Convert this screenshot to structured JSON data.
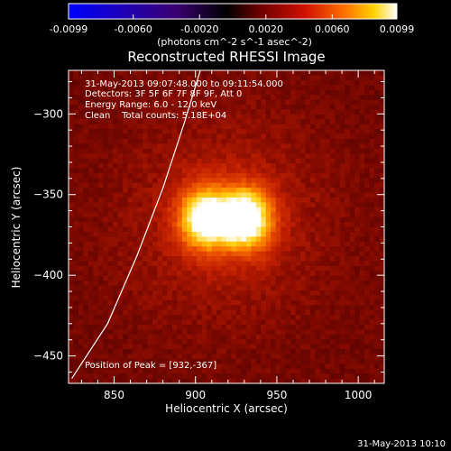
{
  "chart_data": {
    "type": "heatmap",
    "title": "Reconstructed RHESSI Image",
    "xlabel": "Heliocentric X (arcsec)",
    "ylabel": "Heliocentric Y (arcsec)",
    "xlim": [
      822,
      1016
    ],
    "ylim": [
      -467,
      -273
    ],
    "x_ticks": [
      850,
      900,
      950,
      1000
    ],
    "y_ticks": [
      -300,
      -350,
      -400,
      -450
    ],
    "colorbar": {
      "range": [
        -0.0099,
        0.0099
      ],
      "ticks": [
        -0.0099,
        -0.006,
        -0.002,
        0.002,
        0.006,
        0.0099
      ],
      "tick_labels": [
        "-0.0099",
        "-0.0060",
        "-0.0020",
        "0.0020",
        "0.0060",
        "0.0099"
      ],
      "unit_label": "(photons cm^-2 s^-1 asec^-2)",
      "colormap": [
        "#0000ff",
        "#2a0060",
        "#000000",
        "#6a0000",
        "#d01000",
        "#ff7000",
        "#ffd200",
        "#ffffff"
      ]
    },
    "sources": [
      {
        "x": 906,
        "y": -365,
        "peak": 0.0092
      },
      {
        "x": 931,
        "y": -365,
        "peak": 0.0099
      }
    ],
    "background_level": 0.0015,
    "limb_curve": [
      {
        "x": 824,
        "y": -464
      },
      {
        "x": 846,
        "y": -430
      },
      {
        "x": 864,
        "y": -388
      },
      {
        "x": 880,
        "y": -346
      },
      {
        "x": 893,
        "y": -306
      },
      {
        "x": 903,
        "y": -273
      }
    ],
    "annotations": [
      "31-May-2013 09:07:48.000 to 09:11:54.000",
      "Detectors: 3F 5F 6F 7F 8F 9F, Att 0",
      "Energy Range: 6.0 - 12.0 keV",
      "Clean    Total counts: 5.18E+04"
    ],
    "peak_text": "Position of Peak = [932,-367]",
    "timestamp": "31-May-2013 10:10"
  }
}
